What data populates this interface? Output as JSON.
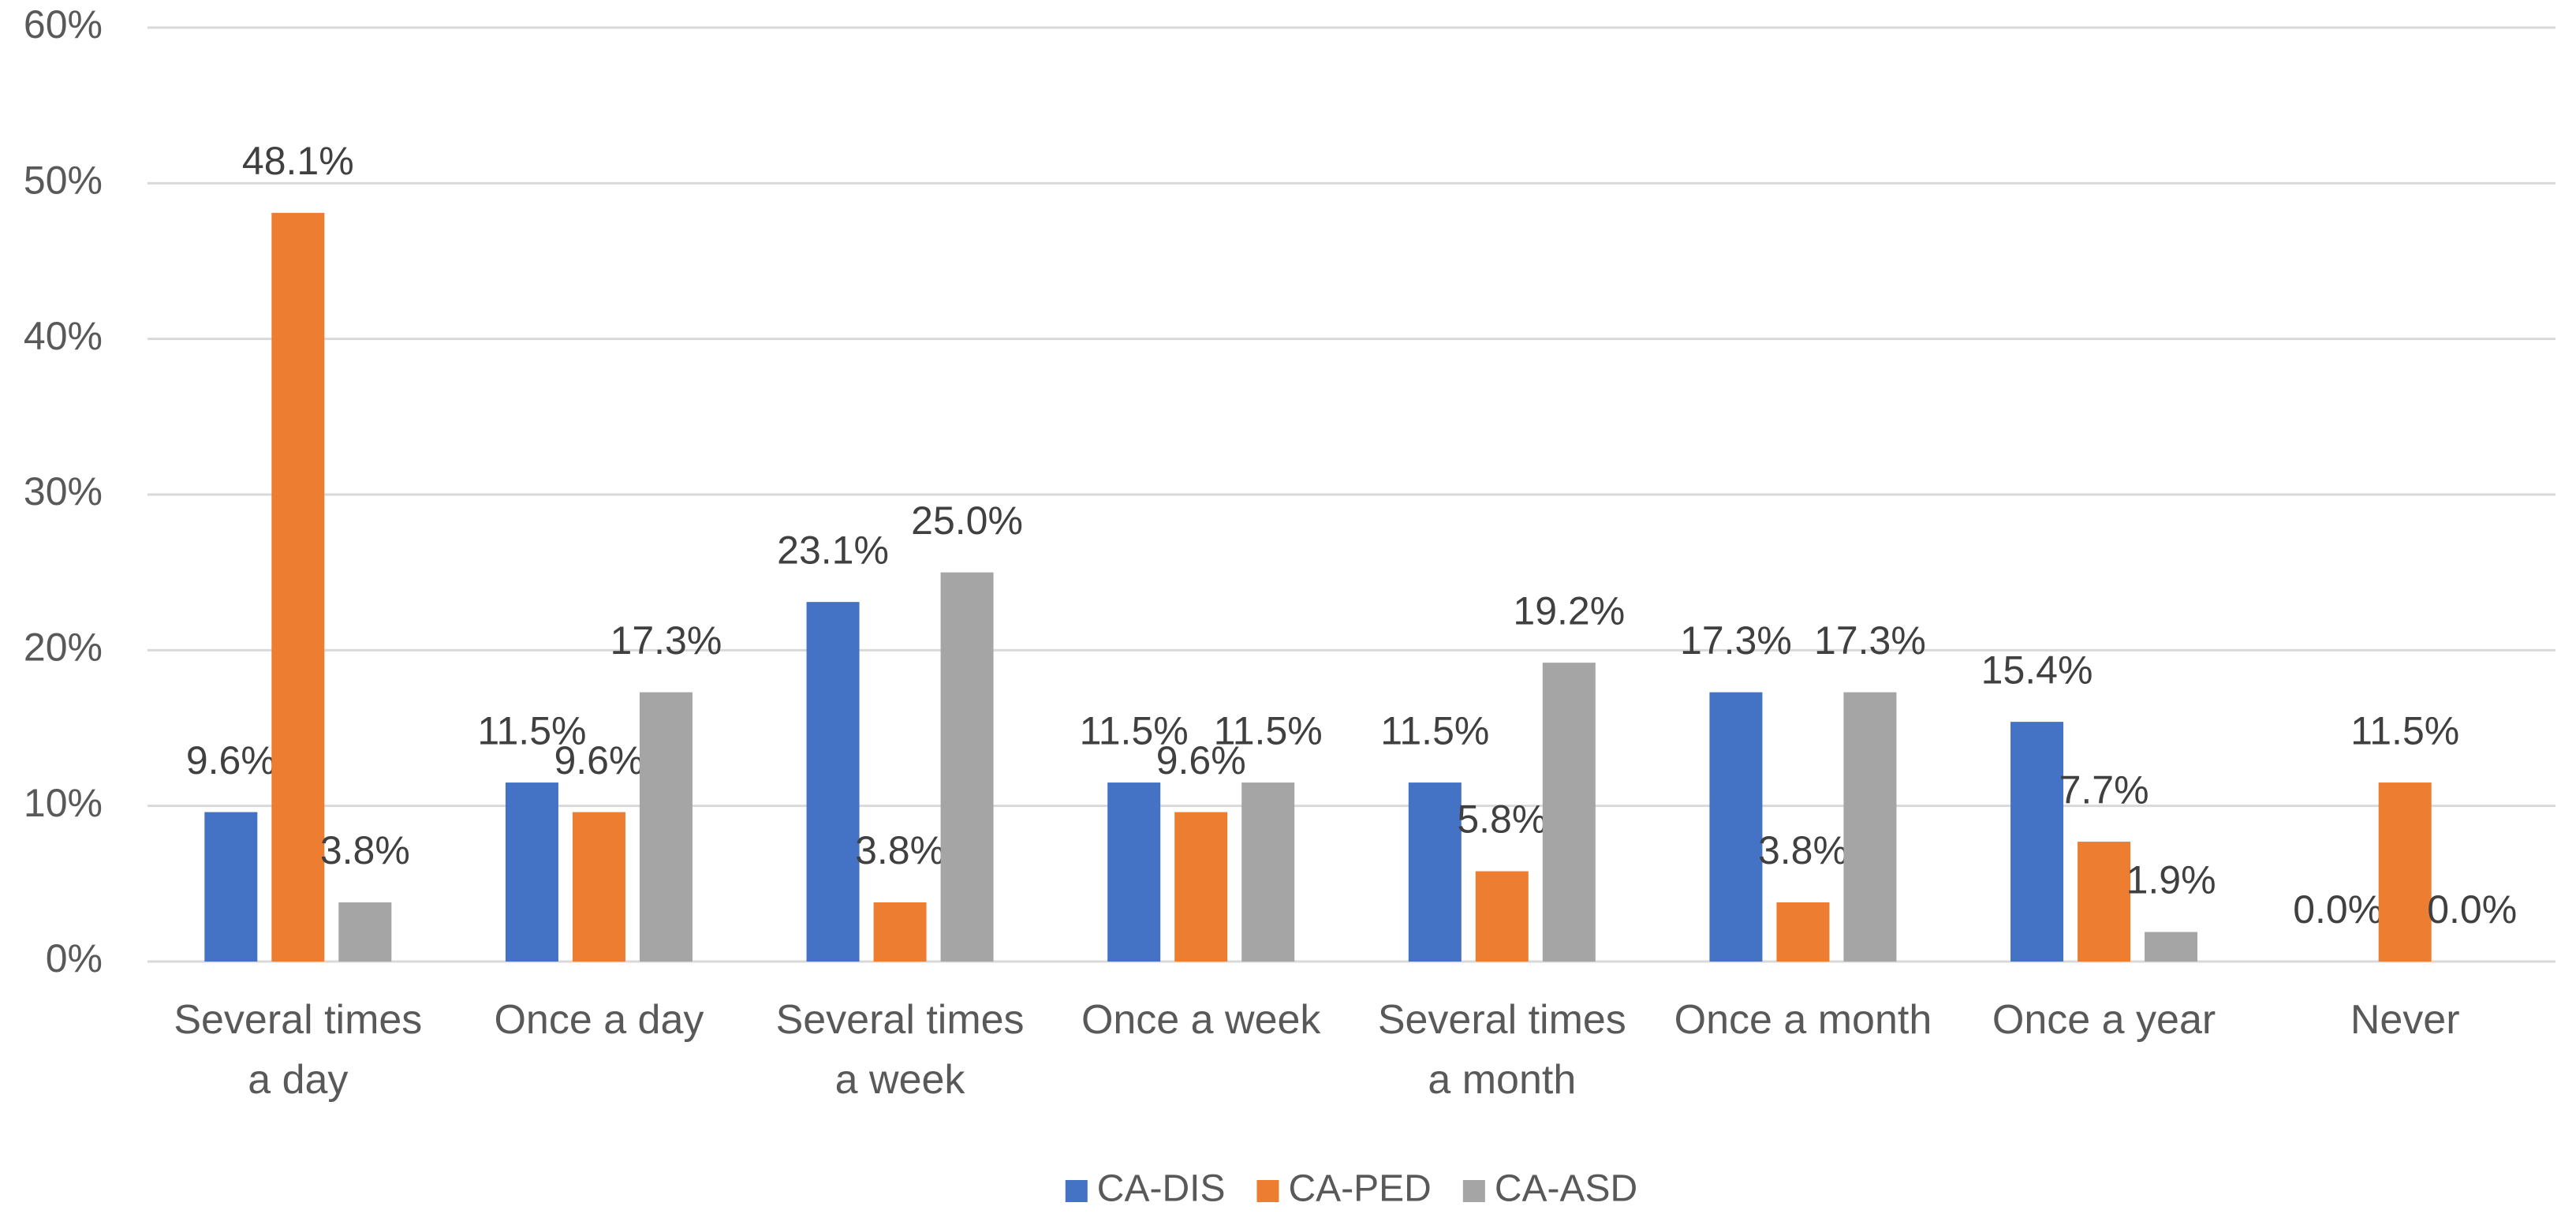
{
  "chart_data": {
    "type": "bar",
    "categories": [
      "Several times\na day",
      "Once a day",
      "Several times\na week",
      "Once a week",
      "Several times\na month",
      "Once a month",
      "Once a year",
      "Never"
    ],
    "series": [
      {
        "name": "CA-DIS",
        "color": "#4472c4",
        "values": [
          9.6,
          11.5,
          23.1,
          11.5,
          11.5,
          17.3,
          15.4,
          0.0
        ],
        "value_labels": [
          "9.6%",
          "11.5%",
          "23.1%",
          "11.5%",
          "11.5%",
          "17.3%",
          "15.4%",
          "0.0%"
        ]
      },
      {
        "name": "CA-PED",
        "color": "#ed7d31",
        "values": [
          48.1,
          9.6,
          3.8,
          9.6,
          5.8,
          3.8,
          7.7,
          11.5
        ],
        "value_labels": [
          "48.1%",
          "9.6%",
          "3.8%",
          "9.6%",
          "5.8%",
          "3.8%",
          "7.7%",
          "11.5%"
        ]
      },
      {
        "name": "CA-ASD",
        "color": "#a5a5a5",
        "values": [
          3.8,
          17.3,
          25.0,
          11.5,
          19.2,
          17.3,
          1.9,
          0.0
        ],
        "value_labels": [
          "3.8%",
          "17.3%",
          "25.0%",
          "11.5%",
          "19.2%",
          "17.3%",
          "1.9%",
          "0.0%"
        ]
      }
    ],
    "ylim": [
      0,
      60
    ],
    "yticks": [
      {
        "value": 0,
        "label": "0%"
      },
      {
        "value": 10,
        "label": "10%"
      },
      {
        "value": 20,
        "label": "20%"
      },
      {
        "value": 30,
        "label": "30%"
      },
      {
        "value": 40,
        "label": "40%"
      },
      {
        "value": 50,
        "label": "50%"
      },
      {
        "value": 60,
        "label": "60%"
      }
    ],
    "grid": true,
    "legend": "bottom"
  }
}
